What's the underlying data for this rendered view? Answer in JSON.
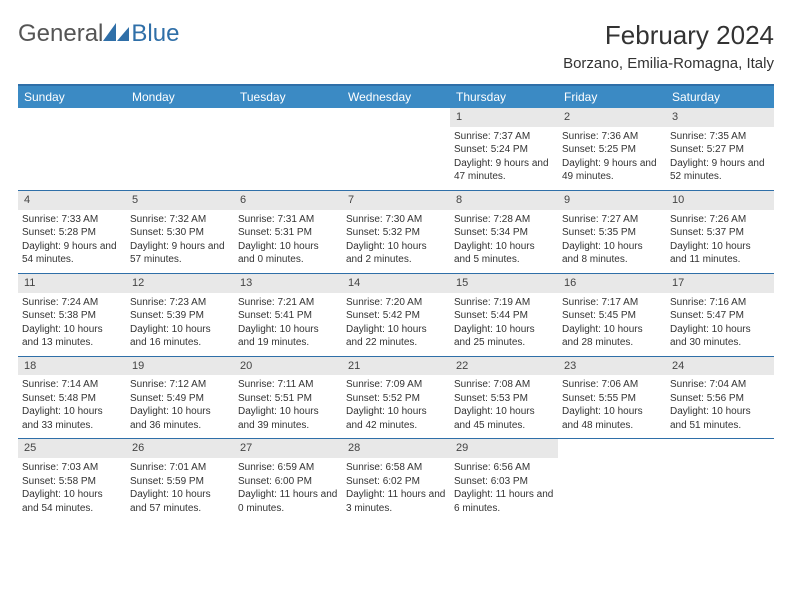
{
  "brand": {
    "part1": "General",
    "part2": "Blue"
  },
  "title": "February 2024",
  "location": "Borzano, Emilia-Romagna, Italy",
  "colors": {
    "header_bar": "#3b8ac4",
    "border": "#2f6fa8",
    "day_header_bg": "#e8e8e8",
    "text": "#333333",
    "background": "#ffffff"
  },
  "weekdays": [
    "Sunday",
    "Monday",
    "Tuesday",
    "Wednesday",
    "Thursday",
    "Friday",
    "Saturday"
  ],
  "weeks": [
    [
      null,
      null,
      null,
      null,
      {
        "num": "1",
        "sunrise": "Sunrise: 7:37 AM",
        "sunset": "Sunset: 5:24 PM",
        "daylight": "Daylight: 9 hours and 47 minutes."
      },
      {
        "num": "2",
        "sunrise": "Sunrise: 7:36 AM",
        "sunset": "Sunset: 5:25 PM",
        "daylight": "Daylight: 9 hours and 49 minutes."
      },
      {
        "num": "3",
        "sunrise": "Sunrise: 7:35 AM",
        "sunset": "Sunset: 5:27 PM",
        "daylight": "Daylight: 9 hours and 52 minutes."
      }
    ],
    [
      {
        "num": "4",
        "sunrise": "Sunrise: 7:33 AM",
        "sunset": "Sunset: 5:28 PM",
        "daylight": "Daylight: 9 hours and 54 minutes."
      },
      {
        "num": "5",
        "sunrise": "Sunrise: 7:32 AM",
        "sunset": "Sunset: 5:30 PM",
        "daylight": "Daylight: 9 hours and 57 minutes."
      },
      {
        "num": "6",
        "sunrise": "Sunrise: 7:31 AM",
        "sunset": "Sunset: 5:31 PM",
        "daylight": "Daylight: 10 hours and 0 minutes."
      },
      {
        "num": "7",
        "sunrise": "Sunrise: 7:30 AM",
        "sunset": "Sunset: 5:32 PM",
        "daylight": "Daylight: 10 hours and 2 minutes."
      },
      {
        "num": "8",
        "sunrise": "Sunrise: 7:28 AM",
        "sunset": "Sunset: 5:34 PM",
        "daylight": "Daylight: 10 hours and 5 minutes."
      },
      {
        "num": "9",
        "sunrise": "Sunrise: 7:27 AM",
        "sunset": "Sunset: 5:35 PM",
        "daylight": "Daylight: 10 hours and 8 minutes."
      },
      {
        "num": "10",
        "sunrise": "Sunrise: 7:26 AM",
        "sunset": "Sunset: 5:37 PM",
        "daylight": "Daylight: 10 hours and 11 minutes."
      }
    ],
    [
      {
        "num": "11",
        "sunrise": "Sunrise: 7:24 AM",
        "sunset": "Sunset: 5:38 PM",
        "daylight": "Daylight: 10 hours and 13 minutes."
      },
      {
        "num": "12",
        "sunrise": "Sunrise: 7:23 AM",
        "sunset": "Sunset: 5:39 PM",
        "daylight": "Daylight: 10 hours and 16 minutes."
      },
      {
        "num": "13",
        "sunrise": "Sunrise: 7:21 AM",
        "sunset": "Sunset: 5:41 PM",
        "daylight": "Daylight: 10 hours and 19 minutes."
      },
      {
        "num": "14",
        "sunrise": "Sunrise: 7:20 AM",
        "sunset": "Sunset: 5:42 PM",
        "daylight": "Daylight: 10 hours and 22 minutes."
      },
      {
        "num": "15",
        "sunrise": "Sunrise: 7:19 AM",
        "sunset": "Sunset: 5:44 PM",
        "daylight": "Daylight: 10 hours and 25 minutes."
      },
      {
        "num": "16",
        "sunrise": "Sunrise: 7:17 AM",
        "sunset": "Sunset: 5:45 PM",
        "daylight": "Daylight: 10 hours and 28 minutes."
      },
      {
        "num": "17",
        "sunrise": "Sunrise: 7:16 AM",
        "sunset": "Sunset: 5:47 PM",
        "daylight": "Daylight: 10 hours and 30 minutes."
      }
    ],
    [
      {
        "num": "18",
        "sunrise": "Sunrise: 7:14 AM",
        "sunset": "Sunset: 5:48 PM",
        "daylight": "Daylight: 10 hours and 33 minutes."
      },
      {
        "num": "19",
        "sunrise": "Sunrise: 7:12 AM",
        "sunset": "Sunset: 5:49 PM",
        "daylight": "Daylight: 10 hours and 36 minutes."
      },
      {
        "num": "20",
        "sunrise": "Sunrise: 7:11 AM",
        "sunset": "Sunset: 5:51 PM",
        "daylight": "Daylight: 10 hours and 39 minutes."
      },
      {
        "num": "21",
        "sunrise": "Sunrise: 7:09 AM",
        "sunset": "Sunset: 5:52 PM",
        "daylight": "Daylight: 10 hours and 42 minutes."
      },
      {
        "num": "22",
        "sunrise": "Sunrise: 7:08 AM",
        "sunset": "Sunset: 5:53 PM",
        "daylight": "Daylight: 10 hours and 45 minutes."
      },
      {
        "num": "23",
        "sunrise": "Sunrise: 7:06 AM",
        "sunset": "Sunset: 5:55 PM",
        "daylight": "Daylight: 10 hours and 48 minutes."
      },
      {
        "num": "24",
        "sunrise": "Sunrise: 7:04 AM",
        "sunset": "Sunset: 5:56 PM",
        "daylight": "Daylight: 10 hours and 51 minutes."
      }
    ],
    [
      {
        "num": "25",
        "sunrise": "Sunrise: 7:03 AM",
        "sunset": "Sunset: 5:58 PM",
        "daylight": "Daylight: 10 hours and 54 minutes."
      },
      {
        "num": "26",
        "sunrise": "Sunrise: 7:01 AM",
        "sunset": "Sunset: 5:59 PM",
        "daylight": "Daylight: 10 hours and 57 minutes."
      },
      {
        "num": "27",
        "sunrise": "Sunrise: 6:59 AM",
        "sunset": "Sunset: 6:00 PM",
        "daylight": "Daylight: 11 hours and 0 minutes."
      },
      {
        "num": "28",
        "sunrise": "Sunrise: 6:58 AM",
        "sunset": "Sunset: 6:02 PM",
        "daylight": "Daylight: 11 hours and 3 minutes."
      },
      {
        "num": "29",
        "sunrise": "Sunrise: 6:56 AM",
        "sunset": "Sunset: 6:03 PM",
        "daylight": "Daylight: 11 hours and 6 minutes."
      },
      null,
      null
    ]
  ]
}
